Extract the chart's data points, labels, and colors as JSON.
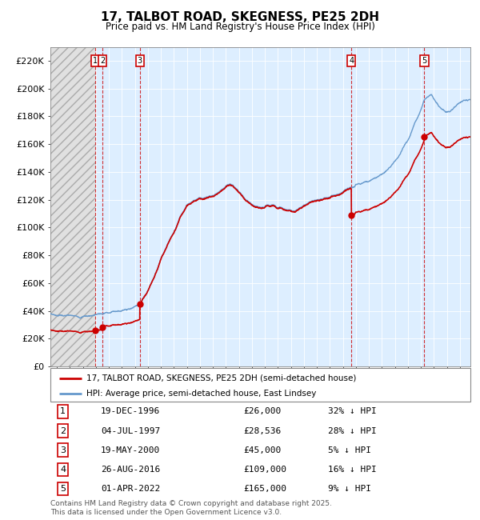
{
  "title": "17, TALBOT ROAD, SKEGNESS, PE25 2DH",
  "subtitle": "Price paid vs. HM Land Registry's House Price Index (HPI)",
  "legend_entries": [
    "17, TALBOT ROAD, SKEGNESS, PE25 2DH (semi-detached house)",
    "HPI: Average price, semi-detached house, East Lindsey"
  ],
  "table_rows": [
    {
      "num": 1,
      "date": "19-DEC-1996",
      "price": "£26,000",
      "hpi": "32% ↓ HPI"
    },
    {
      "num": 2,
      "date": "04-JUL-1997",
      "price": "£28,536",
      "hpi": "28% ↓ HPI"
    },
    {
      "num": 3,
      "date": "19-MAY-2000",
      "price": "£45,000",
      "hpi": "5% ↓ HPI"
    },
    {
      "num": 4,
      "date": "26-AUG-2016",
      "price": "£109,000",
      "hpi": "16% ↓ HPI"
    },
    {
      "num": 5,
      "date": "01-APR-2022",
      "price": "£165,000",
      "hpi": "9% ↓ HPI"
    }
  ],
  "sale_years": [
    1996.97,
    1997.5,
    2000.38,
    2016.65,
    2022.25
  ],
  "sale_prices": [
    26000,
    28536,
    45000,
    109000,
    165000
  ],
  "price_line_color": "#cc0000",
  "hpi_line_color": "#6699cc",
  "footnote": "Contains HM Land Registry data © Crown copyright and database right 2025.\nThis data is licensed under the Open Government Licence v3.0.",
  "ylim": [
    0,
    230000
  ],
  "yticks": [
    0,
    20000,
    40000,
    60000,
    80000,
    100000,
    120000,
    140000,
    160000,
    180000,
    200000,
    220000
  ],
  "xlim_start": 1993.5,
  "xlim_end": 2025.8
}
